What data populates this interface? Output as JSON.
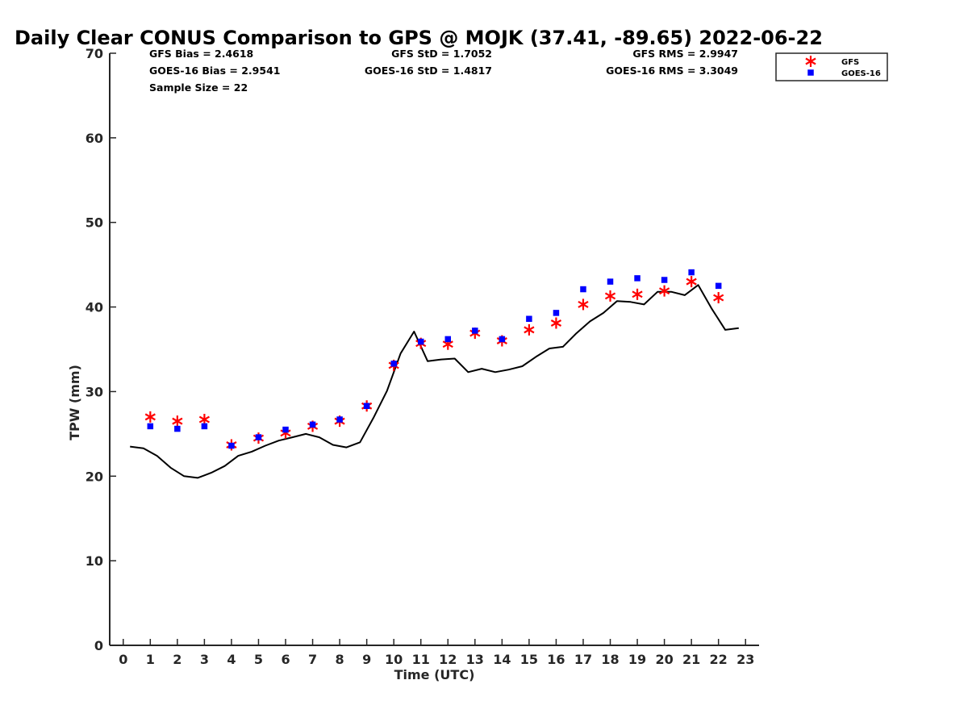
{
  "chart_data": {
    "type": "line",
    "title": "Daily Clear CONUS Comparison to GPS @ MOJK (37.41, -89.65) 2022-06-22",
    "xlabel": "Time (UTC)",
    "ylabel": "TPW (mm)",
    "xlim": [
      -0.5,
      23.5
    ],
    "ylim": [
      0,
      70
    ],
    "xticks": [
      "0",
      "1",
      "2",
      "3",
      "4",
      "5",
      "6",
      "7",
      "8",
      "9",
      "10",
      "11",
      "12",
      "13",
      "14",
      "15",
      "16",
      "17",
      "18",
      "19",
      "20",
      "21",
      "22",
      "23"
    ],
    "yticks": [
      "0",
      "10",
      "20",
      "30",
      "40",
      "50",
      "60",
      "70"
    ],
    "grid": false,
    "legend_position": "top-right",
    "stats": {
      "gfs_bias": "GFS Bias = 2.4618",
      "goes_bias": "GOES-16 Bias = 2.9541",
      "sample_size": "Sample Size = 22",
      "gfs_std": "GFS StD = 1.7052",
      "goes_std": "GOES-16 StD = 1.4817",
      "gfs_rms": "GFS RMS = 2.9947",
      "goes_rms": "GOES-16 RMS = 3.3049"
    },
    "series": [
      {
        "name": "",
        "kind": "line",
        "color": "#000000",
        "x": [
          0.25,
          0.75,
          1.25,
          1.75,
          2.25,
          2.75,
          3.25,
          3.75,
          4.25,
          4.75,
          5.25,
          5.75,
          6.25,
          6.75,
          7.25,
          7.75,
          8.25,
          8.75,
          9.25,
          9.75,
          10.25,
          10.75,
          11.25,
          11.75,
          12.25,
          12.75,
          13.25,
          13.75,
          14.25,
          14.75,
          15.25,
          15.75,
          16.25,
          16.75,
          17.25,
          17.75,
          18.25,
          18.75,
          19.25,
          19.75,
          20.25,
          20.75,
          21.25,
          21.75,
          22.25,
          22.75
        ],
        "y": [
          23.5,
          23.3,
          22.4,
          21.0,
          20.0,
          19.8,
          20.4,
          21.2,
          22.4,
          22.9,
          23.6,
          24.2,
          24.6,
          25.0,
          24.6,
          23.7,
          23.4,
          24.0,
          26.9,
          30.1,
          34.5,
          37.1,
          33.6,
          33.8,
          33.9,
          32.3,
          32.7,
          32.3,
          32.6,
          33.0,
          34.1,
          35.1,
          35.3,
          36.9,
          38.3,
          39.3,
          40.7,
          40.6,
          40.3,
          41.8,
          41.8,
          41.4,
          42.6,
          39.8,
          37.3,
          37.5
        ]
      },
      {
        "name": "GFS",
        "kind": "scatter",
        "marker": "asterisk",
        "color": "#ff0000",
        "x": [
          1,
          2,
          3,
          4,
          5,
          6,
          7,
          8,
          9,
          10,
          11,
          12,
          13,
          14,
          15,
          16,
          17,
          18,
          19,
          20,
          21,
          22
        ],
        "y": [
          27.0,
          26.5,
          26.7,
          23.7,
          24.5,
          25.1,
          25.9,
          26.5,
          28.3,
          33.1,
          35.7,
          35.6,
          36.9,
          36.0,
          37.3,
          38.1,
          40.3,
          41.3,
          41.5,
          41.9,
          43.0,
          41.1
        ]
      },
      {
        "name": "GOES-16",
        "kind": "scatter",
        "marker": "square",
        "color": "#0000ff",
        "x": [
          1,
          2,
          3,
          4,
          5,
          6,
          7,
          8,
          9,
          10,
          11,
          12,
          13,
          14,
          15,
          16,
          17,
          18,
          19,
          20,
          21,
          22
        ],
        "y": [
          25.9,
          25.6,
          25.9,
          23.6,
          24.6,
          25.5,
          26.1,
          26.7,
          28.3,
          33.3,
          35.9,
          36.2,
          37.2,
          36.2,
          38.6,
          39.3,
          42.1,
          43.0,
          43.4,
          43.2,
          44.1,
          42.5
        ]
      }
    ]
  }
}
